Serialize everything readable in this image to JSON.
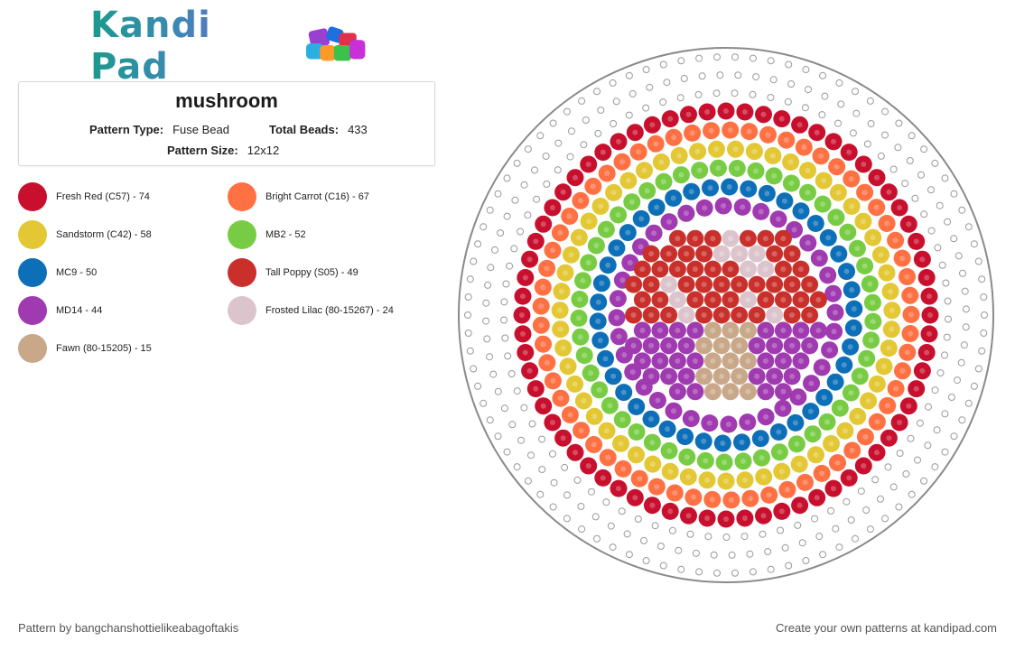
{
  "logo": {
    "text": "Kandi Pad",
    "icon": "bead-pile-icon"
  },
  "pattern": {
    "title": "mushroom",
    "type_label": "Pattern Type:",
    "type_value": "Fuse Bead",
    "beads_label": "Total Beads:",
    "beads_value": "433",
    "size_label": "Pattern Size:",
    "size_value": "12x12"
  },
  "legend": [
    {
      "label": "Fresh Red (C57) - 74",
      "color": "#c8102e"
    },
    {
      "label": "Bright Carrot (C16) - 67",
      "color": "#ff7043"
    },
    {
      "label": "Sandstorm (C42) - 58",
      "color": "#e3c734"
    },
    {
      "label": "MB2 - 52",
      "color": "#78cc44"
    },
    {
      "label": "MC9 - 50",
      "color": "#0d6fb8"
    },
    {
      "label": "Tall Poppy (S05) - 49",
      "color": "#c9302c"
    },
    {
      "label": "MD14 - 44",
      "color": "#a03ab0"
    },
    {
      "label": "Frosted Lilac (80-15267) - 24",
      "color": "#dcc4cc"
    },
    {
      "label": "Fawn (80-15205) - 15",
      "color": "#c9a88a"
    }
  ],
  "footer": {
    "credit": "Pattern by bangchanshottielikeabagoftakis",
    "cta": "Create your own patterns at kandipad.com"
  }
}
